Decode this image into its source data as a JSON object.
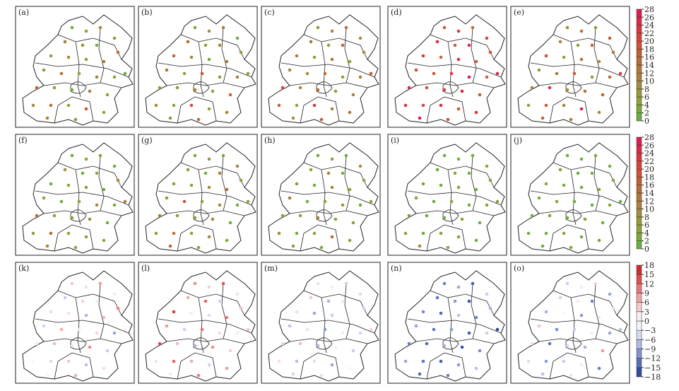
{
  "panels": [
    {
      "label": "(a)",
      "values": [
        2,
        6,
        10,
        4,
        12,
        8,
        3,
        14,
        6,
        9,
        5,
        11,
        2,
        7,
        13,
        4,
        10,
        6,
        16,
        8,
        3,
        12,
        5,
        9,
        14,
        6,
        18,
        4,
        10,
        7
      ]
    },
    {
      "label": "(b)",
      "values": [
        4,
        8,
        12,
        3,
        14,
        6,
        10,
        5,
        16,
        9,
        2,
        11,
        7,
        13,
        4,
        18,
        6,
        10,
        3,
        8,
        12,
        5,
        15,
        9,
        6,
        20,
        4,
        11,
        7,
        14
      ]
    },
    {
      "label": "(c)",
      "values": [
        6,
        10,
        14,
        8,
        12,
        4,
        16,
        9,
        11,
        7,
        13,
        5,
        18,
        10,
        8,
        14,
        6,
        12,
        20,
        9,
        15,
        7,
        11,
        16,
        5,
        22,
        10,
        13,
        8,
        17
      ]
    },
    {
      "label": "(d)",
      "values": [
        18,
        22,
        14,
        20,
        24,
        16,
        26,
        19,
        21,
        15,
        23,
        17,
        25,
        20,
        18,
        22,
        28,
        16,
        24,
        19,
        21,
        26,
        17,
        23,
        20,
        25,
        18,
        22,
        27,
        19
      ]
    },
    {
      "label": "(e)",
      "values": [
        8,
        14,
        6,
        18,
        10,
        4,
        16,
        12,
        20,
        6,
        14,
        9,
        22,
        7,
        12,
        18,
        5,
        15,
        10,
        24,
        8,
        13,
        17,
        6,
        19,
        11,
        26,
        9,
        16,
        12
      ]
    },
    {
      "label": "(f)",
      "values": [
        2,
        4,
        6,
        3,
        8,
        1,
        5,
        10,
        2,
        4,
        7,
        3,
        12,
        5,
        2,
        6,
        9,
        4,
        14,
        3,
        5,
        8,
        2,
        6,
        16,
        4,
        7,
        3,
        10,
        5
      ]
    },
    {
      "label": "(g)",
      "values": [
        4,
        8,
        3,
        10,
        6,
        2,
        12,
        5,
        7,
        3,
        9,
        14,
        4,
        6,
        18,
        5,
        8,
        3,
        11,
        6,
        4,
        10,
        2,
        7,
        13,
        5,
        9,
        3,
        16,
        6
      ]
    },
    {
      "label": "(h)",
      "values": [
        3,
        6,
        2,
        8,
        4,
        10,
        3,
        5,
        7,
        2,
        9,
        4,
        6,
        12,
        3,
        5,
        8,
        2,
        7,
        4,
        11,
        3,
        6,
        9,
        2,
        5,
        14,
        4,
        7,
        3
      ]
    },
    {
      "label": "(i)",
      "values": [
        1,
        3,
        2,
        5,
        1,
        4,
        2,
        6,
        3,
        1,
        4,
        2,
        7,
        3,
        1,
        5,
        2,
        4,
        8,
        1,
        3,
        6,
        2,
        4,
        1,
        5,
        3,
        2,
        9,
        4
      ]
    },
    {
      "label": "(j)",
      "values": [
        2,
        1,
        3,
        2,
        4,
        1,
        2,
        5,
        3,
        1,
        2,
        4,
        1,
        3,
        6,
        2,
        1,
        4,
        2,
        3,
        1,
        5,
        2,
        1,
        3,
        4,
        2,
        7,
        1,
        3
      ]
    },
    {
      "label": "(k)",
      "values": [
        5,
        -3,
        8,
        2,
        -6,
        4,
        -2,
        10,
        -4,
        3,
        -8,
        6,
        1,
        -5,
        7,
        -2,
        4,
        -9,
        2,
        6,
        -3,
        9,
        -6,
        1,
        -4,
        5,
        -7,
        3,
        -1,
        7
      ]
    },
    {
      "label": "(l)",
      "values": [
        9,
        4,
        13,
        -3,
        7,
        12,
        -5,
        6,
        15,
        2,
        -4,
        10,
        5,
        8,
        -6,
        11,
        3,
        -2,
        14,
        6,
        -8,
        9,
        4,
        -3,
        12,
        7,
        -5,
        8,
        2,
        10
      ]
    },
    {
      "label": "(m)",
      "values": [
        -3,
        2,
        -6,
        -4,
        5,
        -8,
        -2,
        -5,
        3,
        -9,
        -6,
        -1,
        4,
        -7,
        -3,
        -10,
        2,
        -5,
        -4,
        6,
        -8,
        -2,
        -6,
        3,
        -7,
        -4,
        -9,
        1,
        -5,
        -3
      ]
    },
    {
      "label": "(n)",
      "values": [
        -12,
        -9,
        -15,
        -6,
        -13,
        -10,
        -16,
        -8,
        -11,
        -14,
        -7,
        -12,
        -17,
        -9,
        -13,
        -10,
        -15,
        -6,
        -12,
        -14,
        -8,
        -16,
        -11,
        -9,
        -13,
        -15,
        -10,
        -7,
        -14,
        -12
      ]
    },
    {
      "label": "(o)",
      "values": [
        -6,
        -2,
        4,
        -9,
        -5,
        2,
        -12,
        -4,
        -8,
        1,
        -10,
        -3,
        -7,
        5,
        -11,
        -6,
        -2,
        -9,
        3,
        -13,
        -5,
        -8,
        8,
        -4,
        -10,
        -6,
        2,
        -12,
        -7,
        -3
      ]
    }
  ],
  "colorbars": [
    {
      "ticks": [
        0,
        2,
        4,
        6,
        8,
        10,
        12,
        14,
        16,
        18,
        20,
        22,
        24,
        26,
        28
      ],
      "colors": [
        "#5fb33d",
        "#8aa53a",
        "#a58a3a",
        "#b5703a",
        "#d05236",
        "#de3040",
        "#d81a50"
      ]
    },
    {
      "ticks": [
        0,
        2,
        4,
        6,
        8,
        10,
        12,
        14,
        16,
        18,
        20,
        22,
        24,
        26,
        28
      ],
      "colors": [
        "#5fb33d",
        "#8aa53a",
        "#a58a3a",
        "#b5703a",
        "#d05236",
        "#de3040",
        "#d81a50"
      ]
    },
    {
      "ticks": [
        {
          "value": -18,
          "label": "−18"
        },
        {
          "value": -15,
          "label": "−15"
        },
        {
          "value": -12,
          "label": "−12"
        },
        {
          "value": -9,
          "label": "−9"
        },
        {
          "value": -6,
          "label": "−6"
        },
        {
          "value": -3,
          "label": "−3"
        },
        0,
        3,
        6,
        9,
        12,
        15,
        18
      ],
      "colors": [
        "#1f3a93",
        "#6a80c8",
        "#c7cdea",
        "#ffffff",
        "#f4b9b9",
        "#e56060",
        "#c71a1a"
      ]
    }
  ]
}
